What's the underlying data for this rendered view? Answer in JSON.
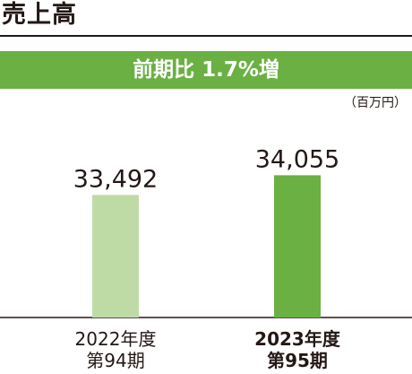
{
  "header": {
    "title": "売上高",
    "growth_label": "前期比 1.7%増",
    "unit": "（百万円）"
  },
  "colors": {
    "accent": "#6ab043",
    "previous_bar": "#bfdba5",
    "current_bar": "#6ab043",
    "text": "#231815"
  },
  "chart_data": {
    "type": "bar",
    "title": "売上高",
    "subtitle": "前期比 1.7%増",
    "unit": "（百万円）",
    "categories": [
      "2022年度 第94期",
      "2023年度 第95期"
    ],
    "category_lines": [
      [
        "2022年度",
        "第94期"
      ],
      [
        "2023年度",
        "第95期"
      ]
    ],
    "values": [
      33492,
      34055
    ],
    "value_labels": [
      "33,492",
      "34,055"
    ],
    "bar_colors": [
      "#bfdba5",
      "#6ab043"
    ],
    "ylim": [
      30000,
      34500
    ],
    "grid": false,
    "legend": "none"
  }
}
